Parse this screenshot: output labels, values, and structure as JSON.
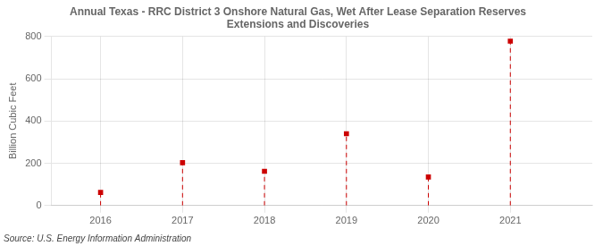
{
  "chart_data": {
    "type": "scatter",
    "title": "Annual Texas - RRC District 3 Onshore Natural Gas, Wet After Lease Separation Reserves\nExtensions and Discoveries",
    "ylabel": "Billion Cubic Feet",
    "annotation": "Source: U.S. Energy Information Administration",
    "x": [
      2016,
      2017,
      2018,
      2019,
      2020,
      2021
    ],
    "values": [
      62,
      203,
      162,
      340,
      135,
      778
    ],
    "color": "#cc0000",
    "marker": "square",
    "line_style": "dashed",
    "xlim": [
      2015.4,
      2022.0
    ],
    "xticks": [
      2016,
      2017,
      2018,
      2019,
      2020,
      2021
    ],
    "ylim": [
      0,
      800
    ],
    "yticks": [
      0,
      200,
      400,
      600,
      800
    ],
    "grid": true
  }
}
